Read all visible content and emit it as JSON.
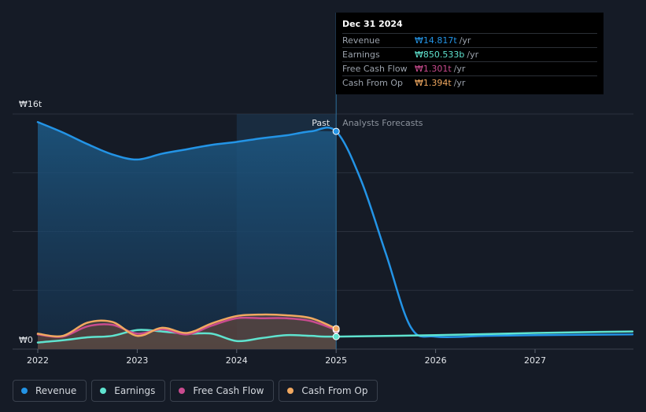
{
  "chart_data": {
    "type": "area",
    "x_ticks": [
      "2022",
      "2023",
      "2024",
      "2025",
      "2026",
      "2027"
    ],
    "y_labels": {
      "top": "₩16t",
      "bottom": "₩0"
    },
    "ylim": [
      0,
      16
    ],
    "xlim": [
      2022,
      2027.98
    ],
    "divider_labels": {
      "past": "Past",
      "forecast": "Analysts Forecasts"
    },
    "divider_x": 2025.0,
    "highlight_range": [
      2024.0,
      2025.0
    ],
    "series": [
      {
        "name": "Revenue",
        "color": "#2394e6",
        "points": [
          [
            2022.0,
            15.45
          ],
          [
            2022.25,
            14.75
          ],
          [
            2022.5,
            13.95
          ],
          [
            2022.75,
            13.25
          ],
          [
            2023.0,
            12.9
          ],
          [
            2023.25,
            13.3
          ],
          [
            2023.5,
            13.6
          ],
          [
            2023.75,
            13.9
          ],
          [
            2024.0,
            14.1
          ],
          [
            2024.25,
            14.35
          ],
          [
            2024.5,
            14.55
          ],
          [
            2024.75,
            14.82
          ],
          [
            2025.0,
            14.817
          ],
          [
            2025.25,
            11.5
          ],
          [
            2025.5,
            6.5
          ],
          [
            2025.75,
            1.5
          ],
          [
            2026.0,
            0.85
          ],
          [
            2026.5,
            0.9
          ],
          [
            2027.0,
            0.95
          ],
          [
            2027.98,
            1.0
          ]
        ]
      },
      {
        "name": "Earnings",
        "color": "#5fe3cf",
        "points": [
          [
            2022.0,
            0.45
          ],
          [
            2022.25,
            0.6
          ],
          [
            2022.5,
            0.8
          ],
          [
            2022.75,
            0.9
          ],
          [
            2023.0,
            1.3
          ],
          [
            2023.25,
            1.2
          ],
          [
            2023.5,
            1.05
          ],
          [
            2023.75,
            1.05
          ],
          [
            2024.0,
            0.55
          ],
          [
            2024.25,
            0.75
          ],
          [
            2024.5,
            0.95
          ],
          [
            2024.75,
            0.9
          ],
          [
            2025.0,
            0.85
          ],
          [
            2026.0,
            0.95
          ],
          [
            2027.0,
            1.1
          ],
          [
            2027.98,
            1.2
          ]
        ]
      },
      {
        "name": "Free Cash Flow",
        "color": "#c94b8f",
        "points": [
          [
            2022.0,
            1.0
          ],
          [
            2022.25,
            0.85
          ],
          [
            2022.5,
            1.55
          ],
          [
            2022.75,
            1.65
          ],
          [
            2023.0,
            1.05
          ],
          [
            2023.25,
            1.35
          ],
          [
            2023.5,
            1.0
          ],
          [
            2023.75,
            1.6
          ],
          [
            2024.0,
            2.1
          ],
          [
            2024.25,
            2.1
          ],
          [
            2024.5,
            2.1
          ],
          [
            2024.75,
            1.9
          ],
          [
            2025.0,
            1.301
          ]
        ]
      },
      {
        "name": "Cash From Op",
        "color": "#f0a860",
        "points": [
          [
            2022.0,
            1.05
          ],
          [
            2022.25,
            0.9
          ],
          [
            2022.5,
            1.8
          ],
          [
            2022.75,
            1.85
          ],
          [
            2023.0,
            0.9
          ],
          [
            2023.25,
            1.45
          ],
          [
            2023.5,
            1.1
          ],
          [
            2023.75,
            1.75
          ],
          [
            2024.0,
            2.25
          ],
          [
            2024.25,
            2.35
          ],
          [
            2024.5,
            2.3
          ],
          [
            2024.75,
            2.1
          ],
          [
            2025.0,
            1.394
          ]
        ]
      }
    ]
  },
  "tooltip": {
    "date": "Dec 31 2024",
    "rows": [
      {
        "label": "Revenue",
        "value": "₩14.817t",
        "unit": "/yr",
        "color": "#2394e6"
      },
      {
        "label": "Earnings",
        "value": "₩850.533b",
        "unit": "/yr",
        "color": "#5fe3cf"
      },
      {
        "label": "Free Cash Flow",
        "value": "₩1.301t",
        "unit": "/yr",
        "color": "#c94b8f"
      },
      {
        "label": "Cash From Op",
        "value": "₩1.394t",
        "unit": "/yr",
        "color": "#f0a860"
      }
    ]
  },
  "legend": [
    {
      "label": "Revenue",
      "color": "#2394e6"
    },
    {
      "label": "Earnings",
      "color": "#5fe3cf"
    },
    {
      "label": "Free Cash Flow",
      "color": "#c94b8f"
    },
    {
      "label": "Cash From Op",
      "color": "#f0a860"
    }
  ]
}
